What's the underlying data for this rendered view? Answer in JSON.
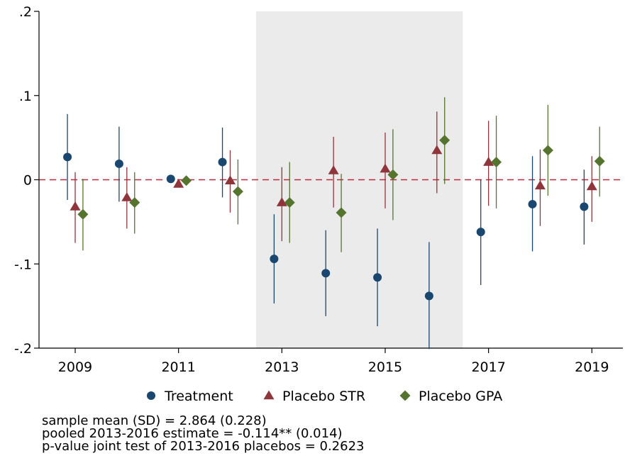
{
  "chart_data": {
    "type": "scatter",
    "title": "",
    "xlabel": "",
    "ylabel": "",
    "xlim": [
      2008.3,
      2019.6
    ],
    "ylim": [
      -0.2,
      0.2
    ],
    "x_ticks": [
      2009,
      2011,
      2013,
      2015,
      2017,
      2019
    ],
    "x_tick_labels": [
      "2009",
      "2011",
      "2013",
      "2015",
      "2017",
      "2019"
    ],
    "y_ticks": [
      -0.2,
      -0.1,
      0,
      0.1,
      0.2
    ],
    "y_tick_labels": [
      "-.2",
      "-.1",
      "0",
      ".1",
      ".2"
    ],
    "grid": false,
    "reference_line": {
      "y": 0,
      "style": "dashed",
      "color": "#c0283c"
    },
    "shaded_region": {
      "x_start": 2012.5,
      "x_end": 2016.5,
      "color": "#ebebeb"
    },
    "series": [
      {
        "name": "Treatment",
        "marker": "circle",
        "color": "#1a476f",
        "offset": -0.15,
        "points": [
          {
            "x": 2009,
            "y": 0.027,
            "lo": -0.024,
            "hi": 0.078
          },
          {
            "x": 2010,
            "y": 0.019,
            "lo": -0.026,
            "hi": 0.063
          },
          {
            "x": 2011,
            "y": 0.001,
            "lo": 0.001,
            "hi": 0.001
          },
          {
            "x": 2012,
            "y": 0.021,
            "lo": -0.021,
            "hi": 0.062
          },
          {
            "x": 2013,
            "y": -0.094,
            "lo": -0.147,
            "hi": -0.041
          },
          {
            "x": 2014,
            "y": -0.111,
            "lo": -0.162,
            "hi": -0.06
          },
          {
            "x": 2015,
            "y": -0.116,
            "lo": -0.174,
            "hi": -0.058
          },
          {
            "x": 2016,
            "y": -0.138,
            "lo": -0.201,
            "hi": -0.074
          },
          {
            "x": 2017,
            "y": -0.062,
            "lo": -0.125,
            "hi": 0.0
          },
          {
            "x": 2018,
            "y": -0.029,
            "lo": -0.085,
            "hi": 0.028
          },
          {
            "x": 2019,
            "y": -0.032,
            "lo": -0.077,
            "hi": 0.012
          }
        ]
      },
      {
        "name": "Placebo STR",
        "marker": "triangle",
        "color": "#90353b",
        "offset": 0.0,
        "points": [
          {
            "x": 2009,
            "y": -0.032,
            "lo": -0.075,
            "hi": 0.009
          },
          {
            "x": 2010,
            "y": -0.021,
            "lo": -0.058,
            "hi": 0.015
          },
          {
            "x": 2011,
            "y": -0.005,
            "lo": -0.005,
            "hi": -0.005
          },
          {
            "x": 2012,
            "y": -0.001,
            "lo": -0.039,
            "hi": 0.035
          },
          {
            "x": 2013,
            "y": -0.027,
            "lo": -0.073,
            "hi": 0.015
          },
          {
            "x": 2014,
            "y": 0.011,
            "lo": -0.033,
            "hi": 0.051
          },
          {
            "x": 2015,
            "y": 0.013,
            "lo": -0.034,
            "hi": 0.056
          },
          {
            "x": 2016,
            "y": 0.035,
            "lo": -0.016,
            "hi": 0.081
          },
          {
            "x": 2017,
            "y": 0.021,
            "lo": -0.031,
            "hi": 0.07
          },
          {
            "x": 2018,
            "y": -0.007,
            "lo": -0.055,
            "hi": 0.036
          },
          {
            "x": 2019,
            "y": -0.008,
            "lo": -0.05,
            "hi": 0.028
          }
        ]
      },
      {
        "name": "Placebo GPA",
        "marker": "diamond",
        "color": "#55752f",
        "offset": 0.15,
        "points": [
          {
            "x": 2009,
            "y": -0.041,
            "lo": -0.084,
            "hi": 0.001
          },
          {
            "x": 2010,
            "y": -0.027,
            "lo": -0.064,
            "hi": 0.009
          },
          {
            "x": 2011,
            "y": -0.001,
            "lo": -0.001,
            "hi": -0.001
          },
          {
            "x": 2012,
            "y": -0.014,
            "lo": -0.053,
            "hi": 0.024
          },
          {
            "x": 2013,
            "y": -0.027,
            "lo": -0.075,
            "hi": 0.021
          },
          {
            "x": 2014,
            "y": -0.039,
            "lo": -0.086,
            "hi": 0.007
          },
          {
            "x": 2015,
            "y": 0.006,
            "lo": -0.048,
            "hi": 0.06
          },
          {
            "x": 2016,
            "y": 0.047,
            "lo": -0.005,
            "hi": 0.098
          },
          {
            "x": 2017,
            "y": 0.021,
            "lo": -0.034,
            "hi": 0.076
          },
          {
            "x": 2018,
            "y": 0.035,
            "lo": -0.019,
            "hi": 0.089
          },
          {
            "x": 2019,
            "y": 0.022,
            "lo": -0.02,
            "hi": 0.063
          }
        ]
      }
    ],
    "legend": {
      "position": "bottom",
      "entries": [
        "Treatment",
        "Placebo STR",
        "Placebo GPA"
      ]
    },
    "notes": [
      "sample mean (SD) = 2.864 (0.228)",
      "pooled 2013-2016 estimate = -0.114** (0.014)",
      "p-value joint test of 2013-2016 placebos = 0.2623"
    ]
  }
}
